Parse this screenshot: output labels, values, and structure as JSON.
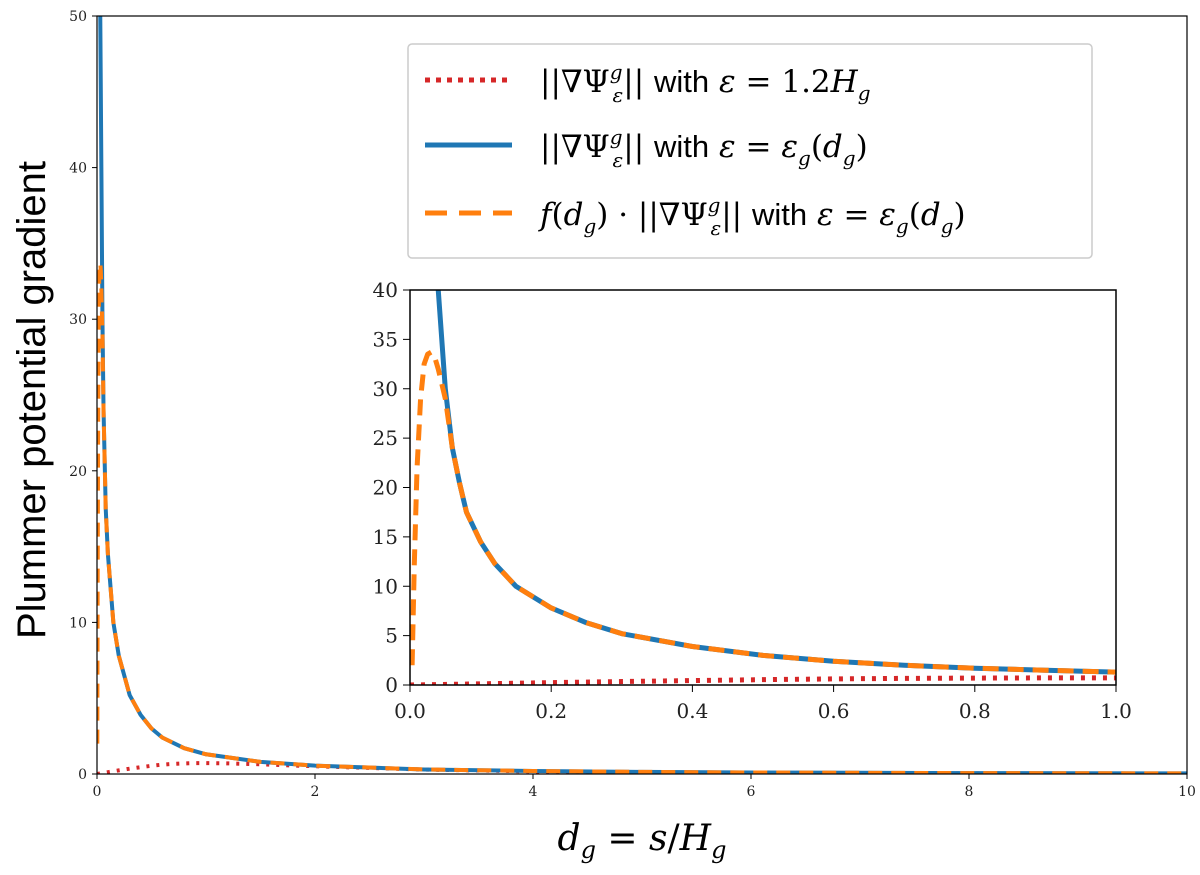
{
  "chart_data": [
    {
      "type": "line",
      "xlabel": "d_g = s/H_g",
      "ylabel": "Plummer potential gradient",
      "xlim": [
        0,
        10
      ],
      "ylim": [
        0,
        50
      ],
      "xticks": [
        "0",
        "2",
        "4",
        "6",
        "8",
        "10"
      ],
      "yticks": [
        "0",
        "10",
        "20",
        "30",
        "40",
        "50"
      ],
      "legend": {
        "placement": "top-right"
      },
      "grid": false,
      "series": [
        {
          "name": "||∇Ψ_ε^g|| with ε = 1.2H_g",
          "color": "#d62728",
          "style": "dotted",
          "x": [
            0,
            0.1,
            0.2,
            0.3,
            0.4,
            0.5,
            0.6,
            0.7,
            0.8,
            0.9,
            1.0,
            1.2,
            1.5,
            2,
            3,
            4,
            5,
            6,
            7,
            8,
            9,
            10
          ],
          "y": [
            0,
            0.12,
            0.24,
            0.35,
            0.45,
            0.54,
            0.62,
            0.67,
            0.7,
            0.72,
            0.72,
            0.7,
            0.64,
            0.51,
            0.29,
            0.17,
            0.11,
            0.08,
            0.06,
            0.04,
            0.03,
            0.03
          ]
        },
        {
          "name": "||∇Ψ_ε^g|| with ε = ε_g(d_g)",
          "color": "#1f77b4",
          "style": "solid",
          "x": [
            0.03,
            0.04,
            0.05,
            0.06,
            0.08,
            0.1,
            0.15,
            0.2,
            0.3,
            0.4,
            0.5,
            0.6,
            0.8,
            1.0,
            1.5,
            2,
            3,
            4,
            5,
            6,
            7,
            8,
            9,
            10
          ],
          "y": [
            50,
            40,
            30,
            24,
            17.5,
            14.5,
            10,
            7.8,
            5.2,
            3.9,
            3.0,
            2.4,
            1.7,
            1.3,
            0.8,
            0.55,
            0.3,
            0.2,
            0.14,
            0.1,
            0.08,
            0.06,
            0.05,
            0.04
          ]
        },
        {
          "name": "f(d_g) · ||∇Ψ_ε^g|| with ε = ε_g(d_g)",
          "color": "#ff7f0e",
          "style": "dashed",
          "x": [
            0.003,
            0.006,
            0.01,
            0.015,
            0.02,
            0.025,
            0.03,
            0.035,
            0.04,
            0.05,
            0.06,
            0.08,
            0.1,
            0.15,
            0.2,
            0.3,
            0.4,
            0.5,
            0.6,
            0.8,
            1.0,
            1.5,
            2,
            3,
            4,
            5,
            6,
            7,
            8,
            9,
            10
          ],
          "y": [
            2,
            12,
            22,
            29,
            32.5,
            33.5,
            33.7,
            33.2,
            32,
            29,
            24,
            17.5,
            14.5,
            10,
            7.8,
            5.2,
            3.9,
            3.0,
            2.4,
            1.7,
            1.3,
            0.8,
            0.55,
            0.3,
            0.2,
            0.14,
            0.1,
            0.08,
            0.06,
            0.05,
            0.04
          ]
        }
      ]
    },
    {
      "type": "line",
      "xlim": [
        0,
        1.0
      ],
      "ylim": [
        0,
        40
      ],
      "xticks": [
        "0.0",
        "0.2",
        "0.4",
        "0.6",
        "0.8",
        "1.0"
      ],
      "yticks": [
        "0",
        "5",
        "10",
        "15",
        "20",
        "25",
        "30",
        "35",
        "40"
      ],
      "grid": false,
      "series": [
        {
          "name": "||∇Ψ_ε^g|| with ε = 1.2H_g",
          "color": "#d62728",
          "style": "dotted",
          "x": [
            0,
            0.1,
            0.2,
            0.3,
            0.4,
            0.5,
            0.6,
            0.7,
            0.8,
            0.9,
            1.0
          ],
          "y": [
            0,
            0.12,
            0.24,
            0.35,
            0.45,
            0.54,
            0.62,
            0.67,
            0.7,
            0.72,
            0.72
          ]
        },
        {
          "name": "||∇Ψ_ε^g|| with ε = ε_g(d_g)",
          "color": "#1f77b4",
          "style": "solid",
          "x": [
            0.04,
            0.05,
            0.06,
            0.07,
            0.08,
            0.1,
            0.12,
            0.15,
            0.2,
            0.25,
            0.3,
            0.4,
            0.5,
            0.6,
            0.7,
            0.8,
            0.9,
            1.0
          ],
          "y": [
            40,
            30,
            24,
            20.5,
            17.5,
            14.5,
            12.3,
            10,
            7.8,
            6.3,
            5.2,
            3.9,
            3.0,
            2.4,
            2.0,
            1.7,
            1.5,
            1.3
          ]
        },
        {
          "name": "f(d_g) · ||∇Ψ_ε^g|| with ε = ε_g(d_g)",
          "color": "#ff7f0e",
          "style": "dashed",
          "x": [
            0.003,
            0.006,
            0.01,
            0.015,
            0.02,
            0.025,
            0.03,
            0.035,
            0.04,
            0.045,
            0.05,
            0.06,
            0.07,
            0.08,
            0.1,
            0.12,
            0.15,
            0.2,
            0.25,
            0.3,
            0.4,
            0.5,
            0.6,
            0.7,
            0.8,
            0.9,
            1.0
          ],
          "y": [
            2,
            12,
            22,
            29,
            32.5,
            33.5,
            33.7,
            33.2,
            32,
            30.5,
            29,
            24,
            20.5,
            17.5,
            14.5,
            12.3,
            10,
            7.8,
            6.3,
            5.2,
            3.9,
            3.0,
            2.4,
            2.0,
            1.7,
            1.5,
            1.3
          ]
        }
      ]
    }
  ]
}
